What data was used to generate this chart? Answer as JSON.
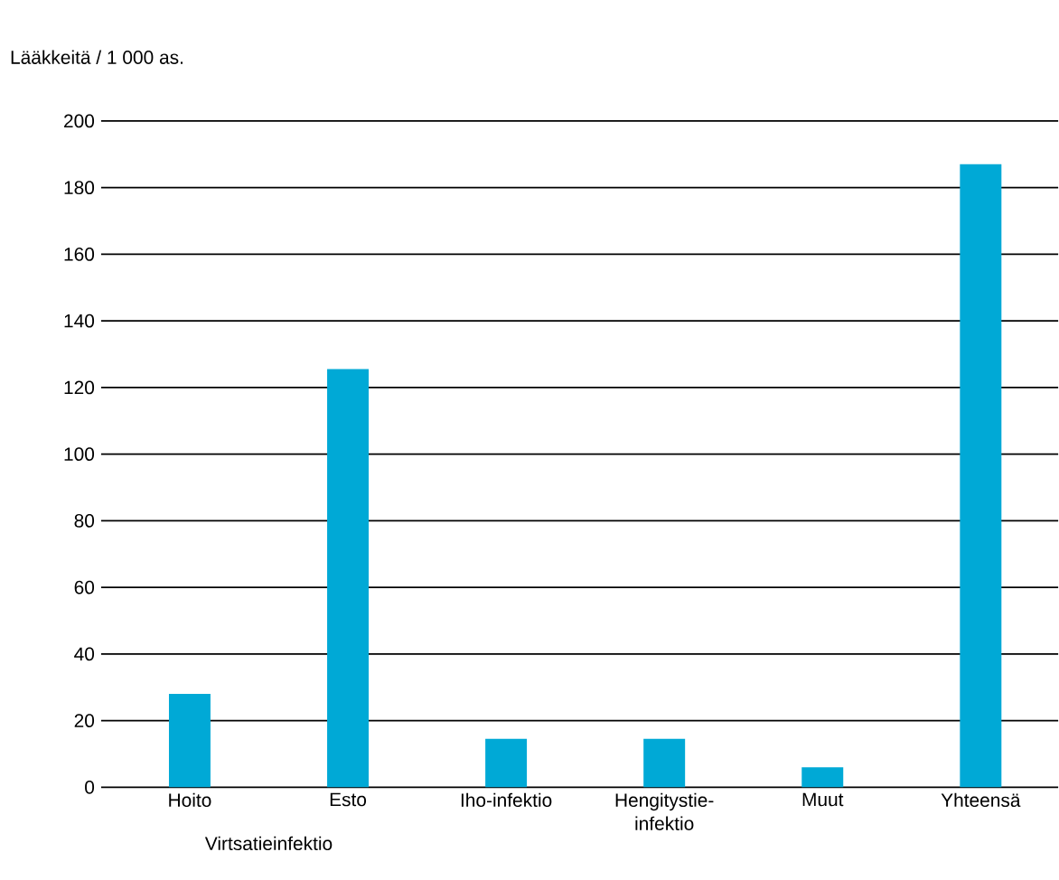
{
  "chart_data": {
    "type": "bar",
    "ylabel": "Lääkkeitä / 1 000 as.",
    "categories": [
      "Hoito",
      "Esto",
      "Iho-infektio",
      "Hengitystie-infektio",
      "Muut",
      "Yhteensä"
    ],
    "values": [
      28,
      125.5,
      14.5,
      14.5,
      6,
      187
    ],
    "color": "#00a9d6",
    "ylim": [
      0,
      200
    ],
    "yticks": [
      0,
      20,
      40,
      60,
      80,
      100,
      120,
      140,
      160,
      180,
      200
    ],
    "grid": "y",
    "annotations": [
      "Virtsatieinfektio"
    ]
  }
}
